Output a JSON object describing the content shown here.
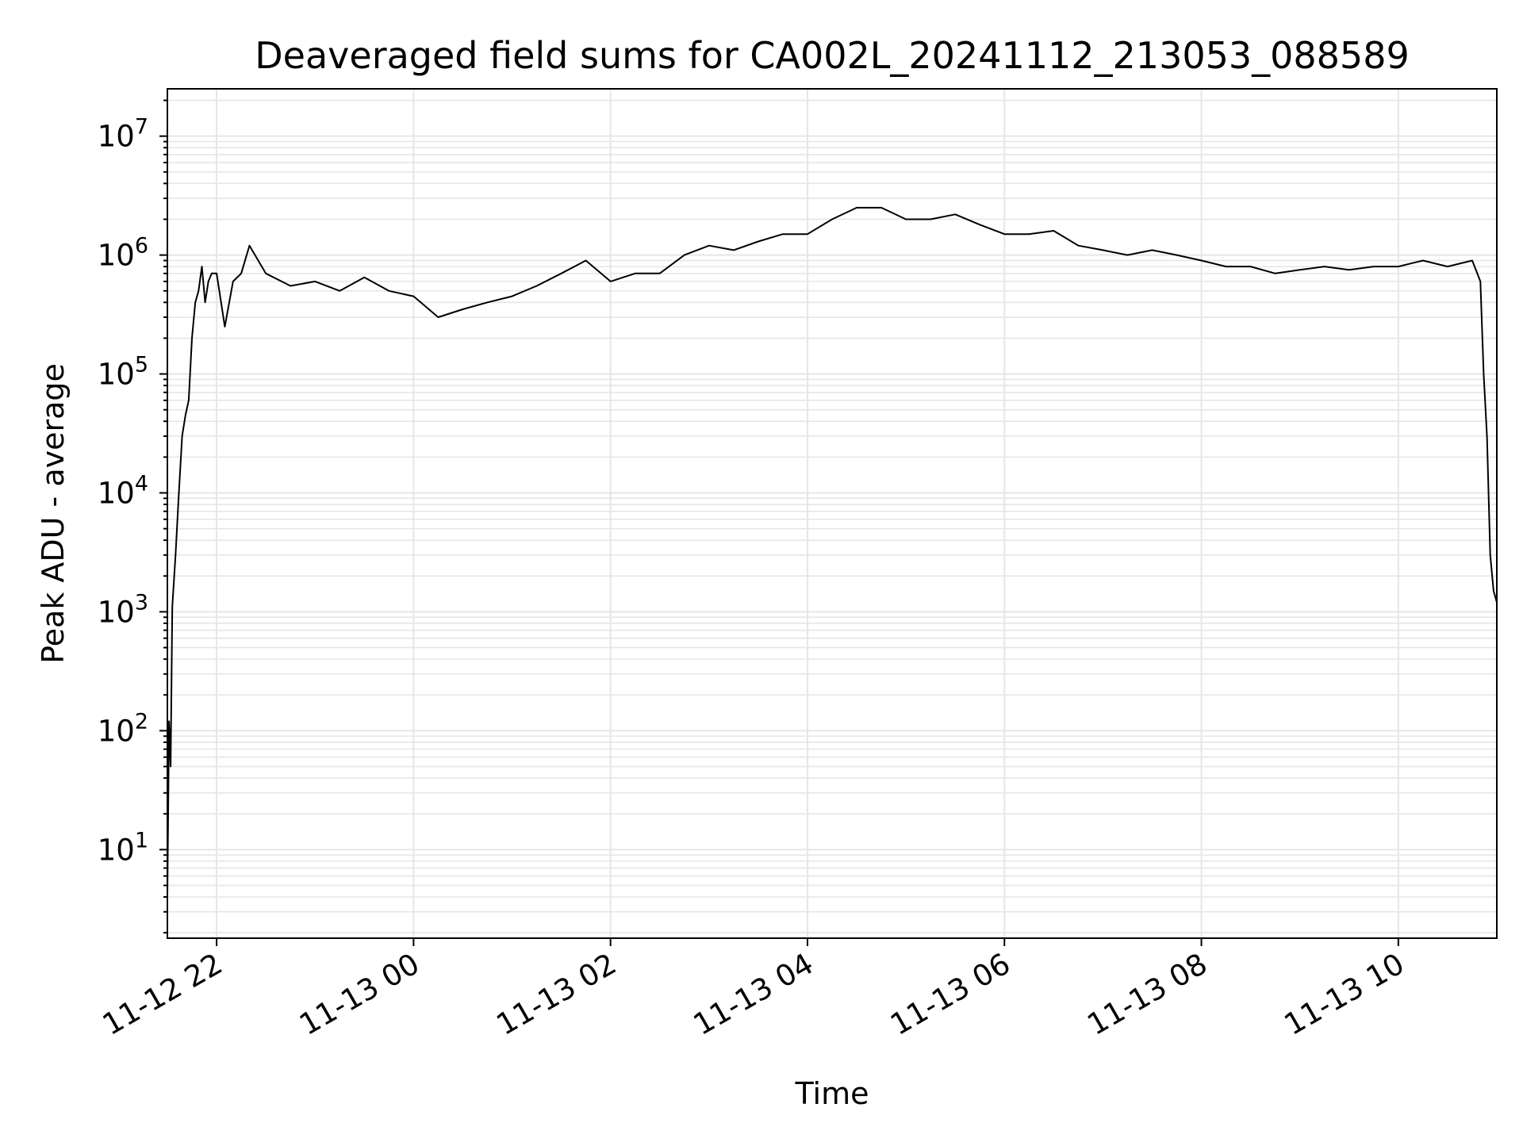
{
  "chart_data": {
    "type": "line",
    "title": "Deaveraged field sums for CA002L_20241112_213053_088589",
    "xlabel": "Time",
    "ylabel": "Peak ADU - average",
    "yscale": "log",
    "ylim": [
      1.8,
      25000000
    ],
    "xlim": [
      "2024-11-12 21:30",
      "2024-11-13 11:00"
    ],
    "grid": true,
    "line_color": "#000000",
    "grid_color": "#e6e6e6",
    "x_ticks": [
      {
        "value": "2024-11-12 22:00",
        "label": "11-12 22"
      },
      {
        "value": "2024-11-13 00:00",
        "label": "11-13 00"
      },
      {
        "value": "2024-11-13 02:00",
        "label": "11-13 02"
      },
      {
        "value": "2024-11-13 04:00",
        "label": "11-13 04"
      },
      {
        "value": "2024-11-13 06:00",
        "label": "11-13 06"
      },
      {
        "value": "2024-11-13 08:00",
        "label": "11-13 08"
      },
      {
        "value": "2024-11-13 10:00",
        "label": "11-13 10"
      }
    ],
    "y_ticks": [
      {
        "value": 10,
        "base": "10",
        "exp": "1"
      },
      {
        "value": 100,
        "base": "10",
        "exp": "2"
      },
      {
        "value": 1000,
        "base": "10",
        "exp": "3"
      },
      {
        "value": 10000,
        "base": "10",
        "exp": "4"
      },
      {
        "value": 100000,
        "base": "10",
        "exp": "5"
      },
      {
        "value": 1000000,
        "base": "10",
        "exp": "6"
      },
      {
        "value": 10000000,
        "base": "10",
        "exp": "7"
      }
    ],
    "series": [
      {
        "x": [
          "2024-11-12 21:30",
          "2024-11-12 21:31",
          "2024-11-12 21:32",
          "2024-11-12 21:33",
          "2024-11-12 21:35",
          "2024-11-12 21:37",
          "2024-11-12 21:39",
          "2024-11-12 21:41",
          "2024-11-12 21:43",
          "2024-11-12 21:45",
          "2024-11-12 21:47",
          "2024-11-12 21:49",
          "2024-11-12 21:51",
          "2024-11-12 21:53",
          "2024-11-12 21:55",
          "2024-11-12 21:57",
          "2024-11-12 22:00",
          "2024-11-12 22:05",
          "2024-11-12 22:10",
          "2024-11-12 22:15",
          "2024-11-12 22:20",
          "2024-11-12 22:30",
          "2024-11-12 22:45",
          "2024-11-12 23:00",
          "2024-11-12 23:15",
          "2024-11-12 23:30",
          "2024-11-12 23:45",
          "2024-11-13 00:00",
          "2024-11-13 00:15",
          "2024-11-13 00:30",
          "2024-11-13 00:45",
          "2024-11-13 01:00",
          "2024-11-13 01:15",
          "2024-11-13 01:30",
          "2024-11-13 01:45",
          "2024-11-13 02:00",
          "2024-11-13 02:15",
          "2024-11-13 02:30",
          "2024-11-13 02:45",
          "2024-11-13 03:00",
          "2024-11-13 03:15",
          "2024-11-13 03:30",
          "2024-11-13 03:45",
          "2024-11-13 04:00",
          "2024-11-13 04:15",
          "2024-11-13 04:30",
          "2024-11-13 04:45",
          "2024-11-13 05:00",
          "2024-11-13 05:15",
          "2024-11-13 05:30",
          "2024-11-13 05:45",
          "2024-11-13 06:00",
          "2024-11-13 06:15",
          "2024-11-13 06:30",
          "2024-11-13 06:45",
          "2024-11-13 07:00",
          "2024-11-13 07:15",
          "2024-11-13 07:30",
          "2024-11-13 07:45",
          "2024-11-13 08:00",
          "2024-11-13 08:15",
          "2024-11-13 08:30",
          "2024-11-13 08:45",
          "2024-11-13 09:00",
          "2024-11-13 09:15",
          "2024-11-13 09:30",
          "2024-11-13 09:45",
          "2024-11-13 10:00",
          "2024-11-13 10:15",
          "2024-11-13 10:30",
          "2024-11-13 10:45",
          "2024-11-13 10:50",
          "2024-11-13 10:52",
          "2024-11-13 10:54",
          "2024-11-13 10:56",
          "2024-11-13 10:58",
          "2024-11-13 11:00"
        ],
        "y": [
          4,
          120,
          50,
          1100,
          3000,
          10000,
          30000,
          45000,
          60000,
          200000,
          400000,
          500000,
          800000,
          400000,
          600000,
          700000,
          700000,
          250000,
          600000,
          700000,
          1200000,
          700000,
          550000,
          600000,
          500000,
          650000,
          500000,
          450000,
          300000,
          350000,
          400000,
          450000,
          550000,
          700000,
          900000,
          600000,
          700000,
          700000,
          1000000,
          1200000,
          1100000,
          1300000,
          1500000,
          1500000,
          2000000,
          2500000,
          2500000,
          2000000,
          2000000,
          2200000,
          1800000,
          1500000,
          1500000,
          1600000,
          1200000,
          1100000,
          1000000,
          1100000,
          1000000,
          900000,
          800000,
          800000,
          700000,
          750000,
          800000,
          750000,
          800000,
          800000,
          900000,
          800000,
          900000,
          600000,
          100000,
          30000,
          3000,
          1500,
          1200
        ]
      }
    ]
  }
}
